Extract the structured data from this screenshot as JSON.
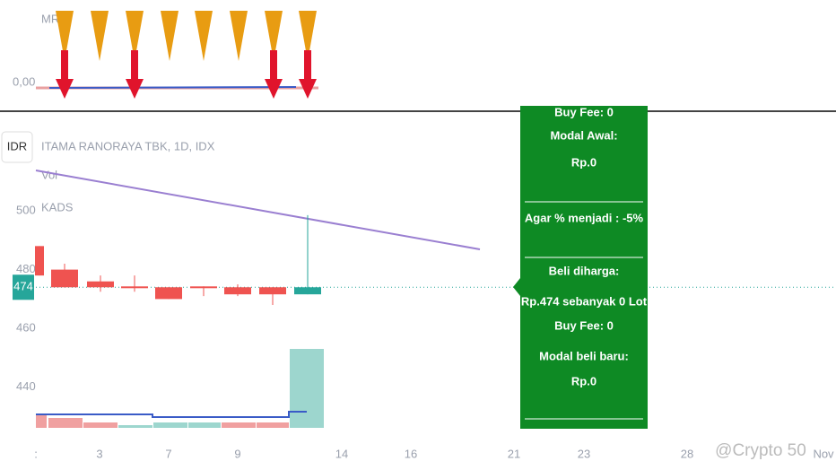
{
  "top_panel": {
    "indicator": "MRA",
    "value_label": "0,00"
  },
  "header": {
    "currency": "IDR",
    "symbol": "ITAMA RANORAYA TBK, 1D, IDX",
    "vol": "Vol",
    "kads": "KADS"
  },
  "price": {
    "ticks": [
      500,
      480,
      460,
      440
    ],
    "current": 474
  },
  "candles": [
    {
      "o": 488,
      "h": 488,
      "l": 478,
      "c": 478
    },
    {
      "o": 480,
      "h": 482,
      "l": 474,
      "c": 474
    },
    {
      "o": 476,
      "h": 478,
      "l": 472.5,
      "c": 474
    },
    {
      "o": 474.3,
      "h": 478,
      "l": 472.5,
      "c": 474
    },
    {
      "o": 474,
      "h": 474,
      "l": 470,
      "c": 470
    },
    {
      "o": 474.3,
      "h": 474.3,
      "l": 471,
      "c": 474
    },
    {
      "o": 474,
      "h": 475,
      "l": 471,
      "c": 471.6
    },
    {
      "o": 474,
      "h": 474,
      "l": 468,
      "c": 471.6
    },
    {
      "o": 471.6,
      "h": 498.5,
      "l": 471.6,
      "c": 474
    }
  ],
  "x_axis": [
    ":",
    "3",
    "7",
    "9",
    "14",
    "16",
    "21",
    "23",
    "28",
    "Nov"
  ],
  "info_panel": {
    "lines": [
      "Buy Fee: 0",
      "Modal Awal:",
      "Rp.0",
      "Agar % menjadi : -5%",
      "Beli diharga:",
      "Rp.474 sebanyak 0 Lot",
      "Buy Fee: 0",
      "Modal beli baru:",
      "Rp.0"
    ]
  },
  "watermark": "@Crypto 50"
}
